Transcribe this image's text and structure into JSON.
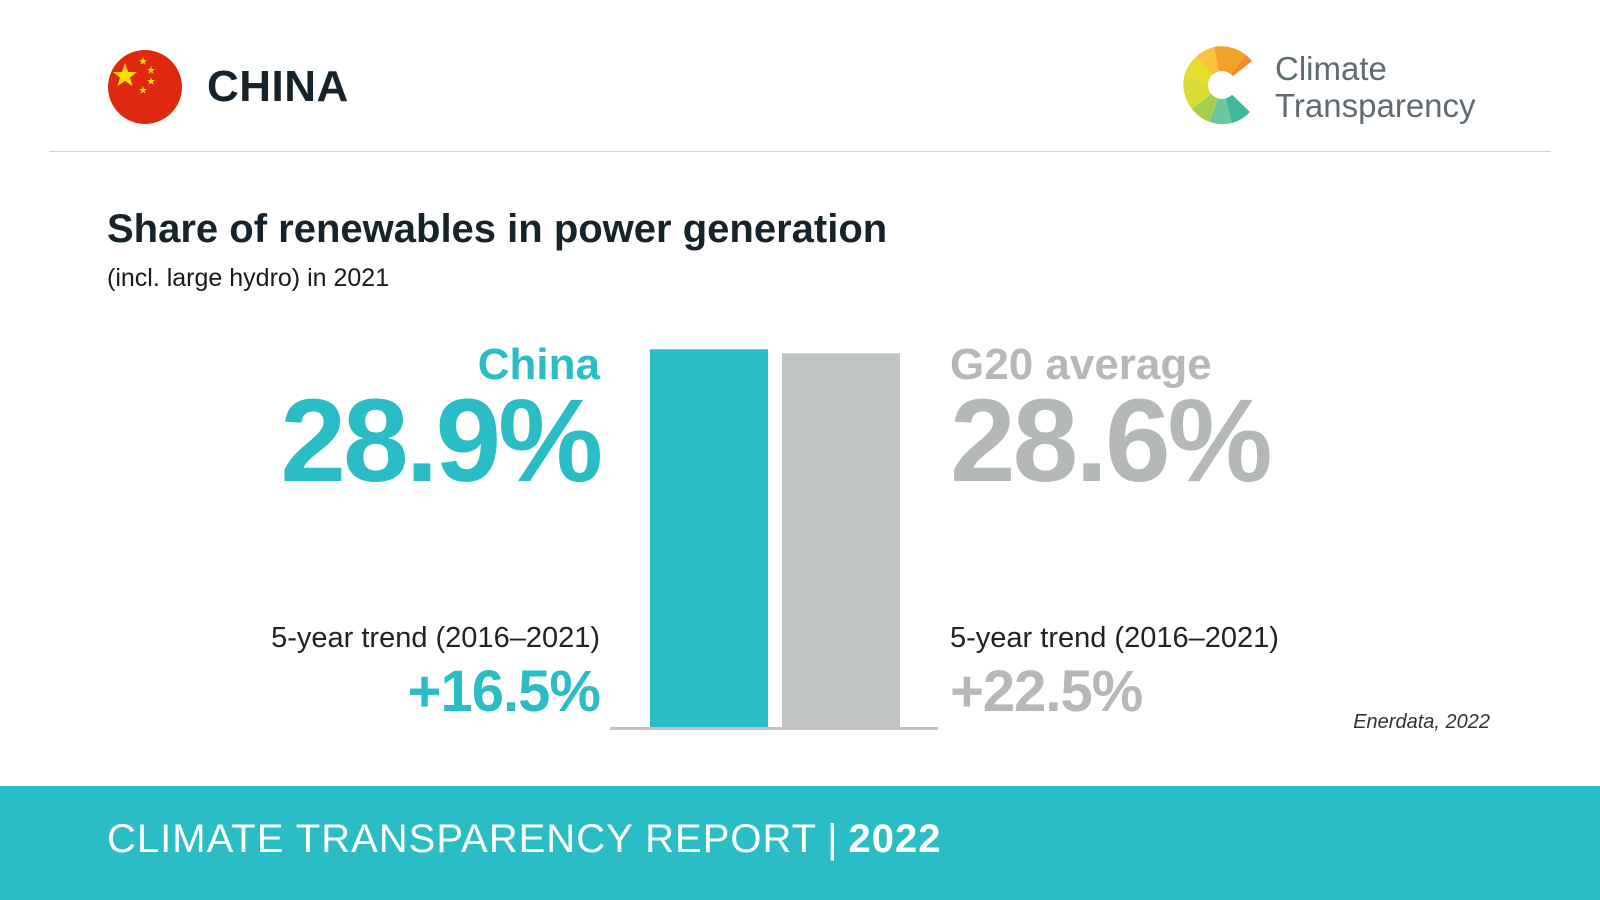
{
  "header": {
    "country": "CHINA",
    "flag_icon": "china-flag-icon",
    "logo": {
      "line1": "Climate",
      "line2": "Transparency"
    }
  },
  "colors": {
    "china": "#2bbdc5",
    "g20": "#c0c3c4",
    "title": "#17232b",
    "footer": "#2bbdc5"
  },
  "chart_data": {
    "type": "bar",
    "title": "Share of renewables in power generation",
    "subtitle": "(incl. large hydro) in 2021",
    "categories": [
      "China",
      "G20 average"
    ],
    "values": [
      28.9,
      28.6
    ],
    "unit": "%",
    "value_labels": [
      "28.9%",
      "28.6%"
    ],
    "trend_label": "5-year trend (2016–2021)",
    "trends": [
      "+16.5%",
      "+22.5%"
    ],
    "source": "Enerdata, 2022"
  },
  "footer": {
    "text": "CLIMATE TRANSPARENCY REPORT",
    "separator": "|",
    "year": "2022"
  }
}
